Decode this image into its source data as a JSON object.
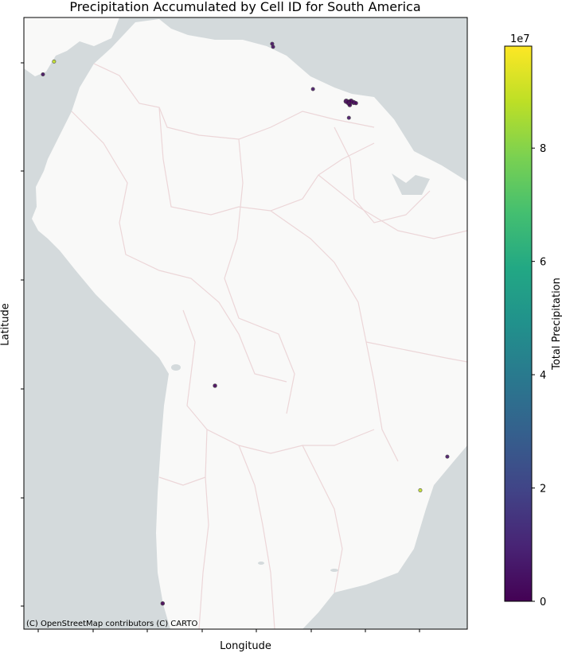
{
  "chart_data": {
    "type": "scatter",
    "title": "Precipitation Accumulated by Cell ID for South America",
    "xlabel": "Longitude",
    "ylabel": "Latitude",
    "attribution": "(C) OpenStreetMap contributors (C) CARTO",
    "colormap": "viridis",
    "colorbar": {
      "label": "Total Precipitation",
      "exponent_label": "1e7",
      "range": [
        0,
        9.8
      ],
      "ticks": [
        0,
        2,
        4,
        6,
        8
      ],
      "tick_labels": [
        "0",
        "2",
        "4",
        "6",
        "8"
      ]
    },
    "x_tick_count": 8,
    "y_tick_count": 6,
    "points_fractional_note": "points in map-fraction coordinates within axes (0..1 from left/top)",
    "points": [
      {
        "u": 0.043,
        "v": 0.093,
        "value": 0.3,
        "size": 2.2
      },
      {
        "u": 0.068,
        "v": 0.072,
        "value": 8.9,
        "size": 2.2
      },
      {
        "u": 0.56,
        "v": 0.043,
        "value": 0.4,
        "size": 2.2
      },
      {
        "u": 0.562,
        "v": 0.048,
        "value": 0.4,
        "size": 2.2
      },
      {
        "u": 0.652,
        "v": 0.117,
        "value": 0.5,
        "size": 2.2
      },
      {
        "u": 0.727,
        "v": 0.137,
        "value": 0.1,
        "size": 3.0
      },
      {
        "u": 0.733,
        "v": 0.139,
        "value": 0.1,
        "size": 3.5
      },
      {
        "u": 0.738,
        "v": 0.137,
        "value": 0.1,
        "size": 3.0
      },
      {
        "u": 0.744,
        "v": 0.139,
        "value": 0.1,
        "size": 2.8
      },
      {
        "u": 0.735,
        "v": 0.143,
        "value": 0.1,
        "size": 2.5
      },
      {
        "u": 0.749,
        "v": 0.14,
        "value": 0.1,
        "size": 2.3
      },
      {
        "u": 0.733,
        "v": 0.164,
        "value": 0.5,
        "size": 2.2
      },
      {
        "u": 0.431,
        "v": 0.602,
        "value": 0.1,
        "size": 2.4
      },
      {
        "u": 0.955,
        "v": 0.718,
        "value": 0.5,
        "size": 2.2
      },
      {
        "u": 0.894,
        "v": 0.773,
        "value": 8.9,
        "size": 2.2
      },
      {
        "u": 0.313,
        "v": 0.958,
        "value": 0.0,
        "size": 2.4
      }
    ]
  }
}
